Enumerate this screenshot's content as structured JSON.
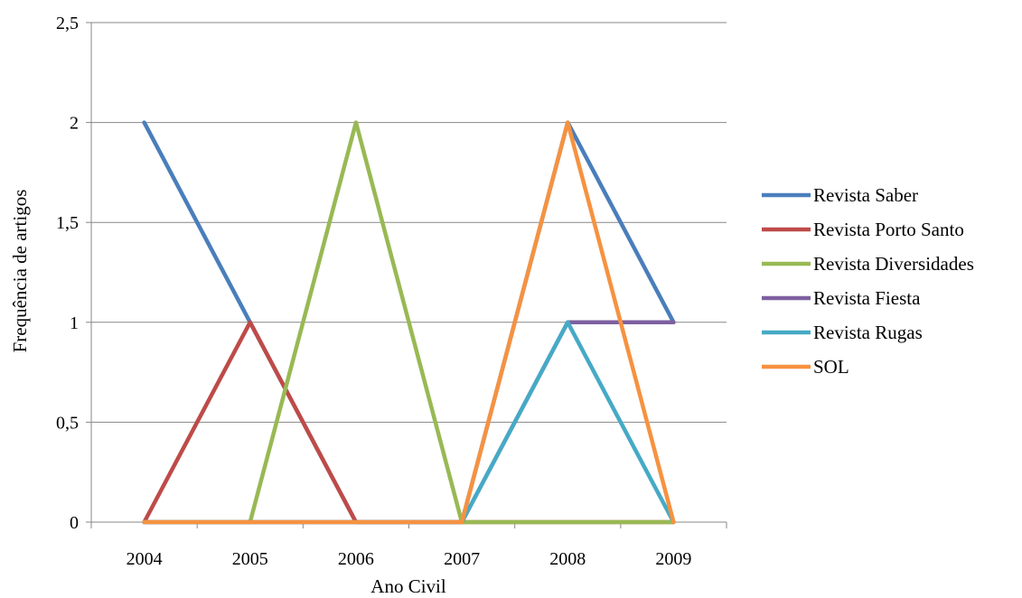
{
  "chart_data": {
    "type": "line",
    "title": "",
    "xlabel": "Ano Civil",
    "ylabel": "Frequência de artigos",
    "categories": [
      "2004",
      "2005",
      "2006",
      "2007",
      "2008",
      "2009"
    ],
    "ylim": [
      0,
      2.5
    ],
    "yticks": [
      0,
      0.5,
      1,
      1.5,
      2,
      2.5
    ],
    "ytick_labels": [
      "0",
      "0,5",
      "1",
      "1,5",
      "2",
      "2,5"
    ],
    "grid": true,
    "legend_position": "right",
    "series": [
      {
        "name": "Revista Saber",
        "color": "#4a7ebb",
        "values": [
          2,
          1,
          0,
          0,
          2,
          1
        ]
      },
      {
        "name": "Revista Porto Santo",
        "color": "#be4b48",
        "values": [
          0,
          1,
          0,
          0,
          0,
          0
        ]
      },
      {
        "name": "Revista Diversidades",
        "color": "#98b954",
        "values": [
          0,
          0,
          2,
          0,
          0,
          0
        ]
      },
      {
        "name": "Revista Fiesta",
        "color": "#7d60a0",
        "values": [
          0,
          0,
          0,
          0,
          1,
          1
        ]
      },
      {
        "name": "Revista Rugas",
        "color": "#46aac5",
        "values": [
          0,
          0,
          0,
          0,
          1,
          0
        ]
      },
      {
        "name": "SOL",
        "color": "#f69240",
        "values": [
          0,
          0,
          0,
          0,
          2,
          0
        ]
      }
    ]
  }
}
